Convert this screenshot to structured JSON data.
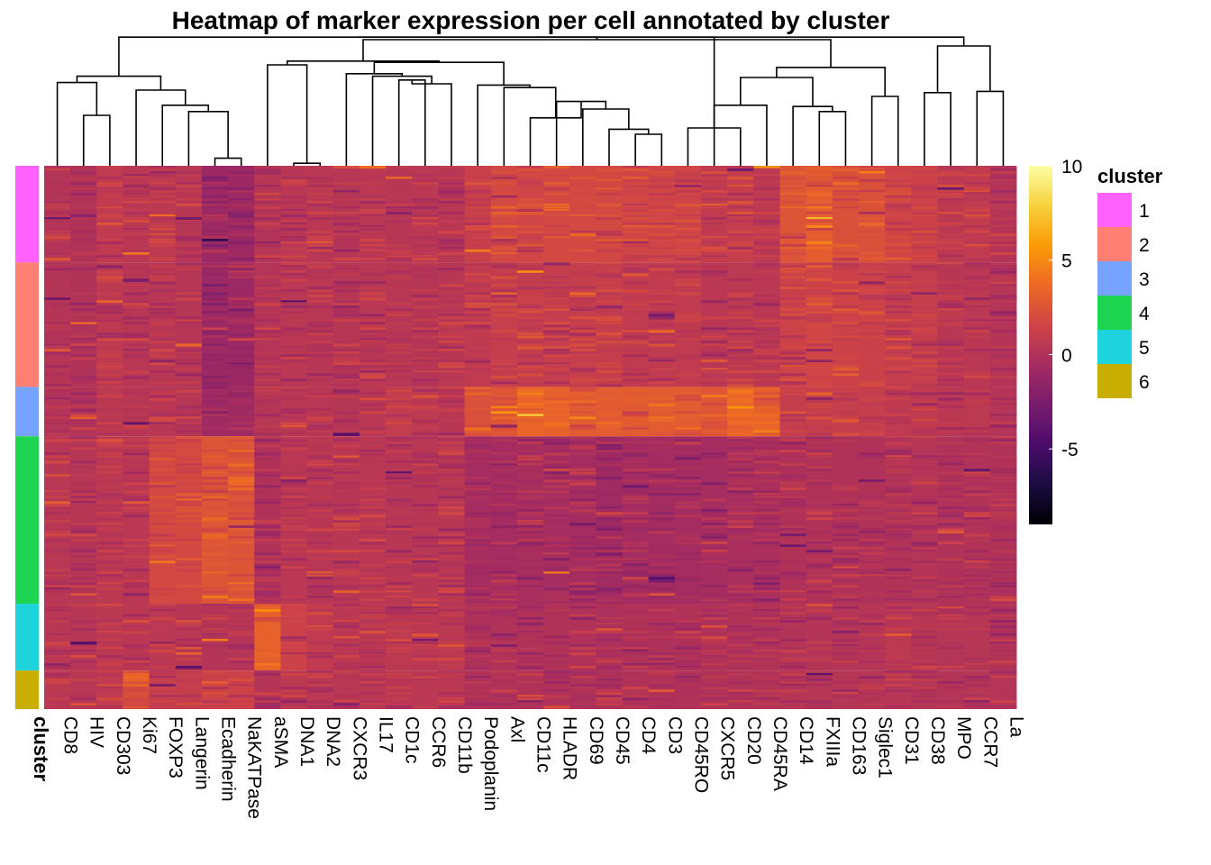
{
  "chart_data": {
    "type": "heatmap",
    "title": "Heatmap of marker expression per cell annotated by cluster",
    "columns": [
      "CD8",
      "HIV",
      "CD303",
      "Ki67",
      "FOXP3",
      "Langerin",
      "Ecadherin",
      "NaKATPase",
      "aSMA",
      "DNA1",
      "DNA2",
      "CXCR3",
      "IL17",
      "CD1c",
      "CCR6",
      "CD11b",
      "Podoplanin",
      "Axl",
      "CD11c",
      "HLADR",
      "CD69",
      "CD45",
      "CD4",
      "CD3",
      "CD45RO",
      "CXCR5",
      "CD20",
      "CD45RA",
      "CD14",
      "FXIIIa",
      "CD163",
      "Siglec1",
      "CD31",
      "CD38",
      "MPO",
      "CCR7",
      "La"
    ],
    "row_annotation": {
      "label": "cluster",
      "clusters": [
        {
          "name": "1",
          "color": "#FF61FF",
          "share": 0.178
        },
        {
          "name": "2",
          "color": "#FF7F73",
          "share": 0.229
        },
        {
          "name": "3",
          "color": "#75A3FF",
          "share": 0.091
        },
        {
          "name": "4",
          "color": "#1ED552",
          "share": 0.308
        },
        {
          "name": "5",
          "color": "#1ED3DB",
          "share": 0.123
        },
        {
          "name": "6",
          "color": "#C8AE00",
          "share": 0.071
        }
      ]
    },
    "mean_expression": {
      "rows": [
        "1",
        "2",
        "3",
        "4",
        "5",
        "6"
      ],
      "values": [
        [
          0.2,
          0.1,
          0.8,
          0.5,
          0.6,
          0.4,
          -1.0,
          -1.0,
          0.3,
          0.5,
          0.5,
          0.3,
          0.5,
          0.4,
          0.5,
          0.4,
          1.2,
          1.8,
          1.6,
          1.8,
          1.8,
          1.8,
          1.6,
          1.6,
          1.6,
          0.8,
          1.0,
          0.6,
          2.5,
          3.0,
          2.3,
          2.3,
          1.6,
          1.4,
          0.6,
          0.8,
          0.2
        ],
        [
          0.2,
          0.1,
          0.6,
          0.4,
          0.4,
          0.3,
          -1.0,
          -1.0,
          0.2,
          0.5,
          0.4,
          0.3,
          0.4,
          0.4,
          0.3,
          0.4,
          0.8,
          1.0,
          0.9,
          1.0,
          1.0,
          1.0,
          0.8,
          0.8,
          0.8,
          0.5,
          0.6,
          0.5,
          1.4,
          1.6,
          1.4,
          1.3,
          1.0,
          1.0,
          0.4,
          0.5,
          0.2
        ],
        [
          0.2,
          0.1,
          0.6,
          0.4,
          0.5,
          0.3,
          -0.8,
          -0.8,
          0.3,
          0.5,
          0.4,
          0.3,
          0.5,
          0.9,
          0.7,
          0.4,
          2.2,
          2.6,
          3.4,
          3.2,
          2.9,
          2.9,
          2.9,
          2.9,
          2.9,
          2.6,
          3.6,
          3.3,
          1.0,
          1.1,
          1.0,
          1.0,
          0.8,
          0.8,
          0.5,
          0.6,
          0.2
        ],
        [
          0.4,
          0.3,
          0.6,
          0.5,
          1.8,
          1.8,
          2.5,
          2.5,
          0.0,
          0.5,
          0.4,
          0.4,
          0.5,
          0.4,
          0.4,
          0.4,
          -0.5,
          -0.6,
          -0.4,
          -0.5,
          -0.5,
          -0.8,
          -0.6,
          -0.6,
          -0.6,
          -0.5,
          -0.3,
          -0.3,
          0.0,
          0.0,
          0.0,
          0.0,
          0.1,
          0.2,
          0.0,
          0.1,
          0.0
        ],
        [
          0.4,
          0.4,
          0.6,
          0.5,
          0.5,
          0.4,
          0.2,
          0.2,
          3.2,
          1.4,
          0.8,
          0.5,
          0.5,
          0.6,
          0.5,
          0.6,
          -0.1,
          0.0,
          0.0,
          0.0,
          0.0,
          -0.2,
          0.0,
          0.0,
          0.0,
          0.0,
          0.1,
          0.1,
          0.2,
          0.2,
          0.2,
          0.2,
          0.6,
          0.4,
          0.2,
          0.3,
          0.1
        ],
        [
          0.5,
          0.4,
          0.8,
          2.2,
          1.0,
          1.0,
          1.4,
          1.4,
          0.2,
          0.6,
          0.5,
          0.4,
          0.5,
          0.5,
          0.5,
          0.5,
          0.0,
          0.0,
          0.0,
          0.0,
          0.0,
          -0.1,
          0.0,
          0.0,
          0.0,
          0.0,
          0.1,
          0.1,
          0.3,
          0.3,
          0.3,
          0.3,
          0.3,
          0.3,
          0.2,
          0.3,
          0.2
        ]
      ]
    },
    "color_scale": {
      "palette": "plasma",
      "domain": [
        -9,
        10
      ],
      "ticks": [
        10,
        5,
        0,
        -5
      ],
      "stops": [
        "#000004",
        "#1B0C41",
        "#4A0C6B",
        "#781C6D",
        "#A52C60",
        "#CF4446",
        "#ED6925",
        "#FB9B06",
        "#F7D13D",
        "#FCFFA4"
      ]
    },
    "column_dendrogram": {
      "merges": [
        [
          6,
          7,
          0.06
        ],
        [
          9,
          10,
          0.02
        ],
        [
          22,
          23,
          0.25
        ],
        [
          21,
          22,
          0.29
        ],
        [
          24,
          26,
          0.3
        ],
        [
          20,
          21,
          0.45
        ],
        [
          19,
          20,
          0.51
        ],
        [
          26,
          27,
          0.48
        ],
        [
          25,
          26,
          0.6
        ],
        [
          18,
          19,
          0.38
        ],
        [
          17,
          18,
          0.62
        ],
        [
          16,
          17,
          0.64
        ],
        [
          29,
          30,
          0.43
        ],
        [
          28,
          29,
          0.47
        ],
        [
          31,
          32,
          0.55
        ],
        [
          33,
          34,
          0.58
        ],
        [
          35,
          36,
          0.59
        ],
        [
          1,
          2,
          0.4
        ],
        [
          5,
          6,
          0.43
        ],
        [
          4,
          5,
          0.48
        ],
        [
          3,
          4,
          0.6
        ],
        [
          0,
          1,
          0.66
        ],
        [
          13,
          14,
          0.68
        ],
        [
          14,
          15,
          0.65
        ],
        [
          12,
          13,
          0.71
        ],
        [
          11,
          12,
          0.73
        ],
        [
          8,
          9,
          0.8
        ],
        [
          2,
          3,
          0.71
        ],
        [
          27,
          28,
          0.7
        ],
        [
          30,
          31,
          0.78
        ],
        [
          15,
          16,
          0.82
        ],
        [
          10,
          11,
          0.83
        ],
        [
          24,
          25,
          0.85
        ],
        [
          34,
          35,
          0.95
        ],
        [
          5,
          7,
          0.9
        ],
        [
          12,
          28,
          1.0
        ]
      ]
    }
  }
}
